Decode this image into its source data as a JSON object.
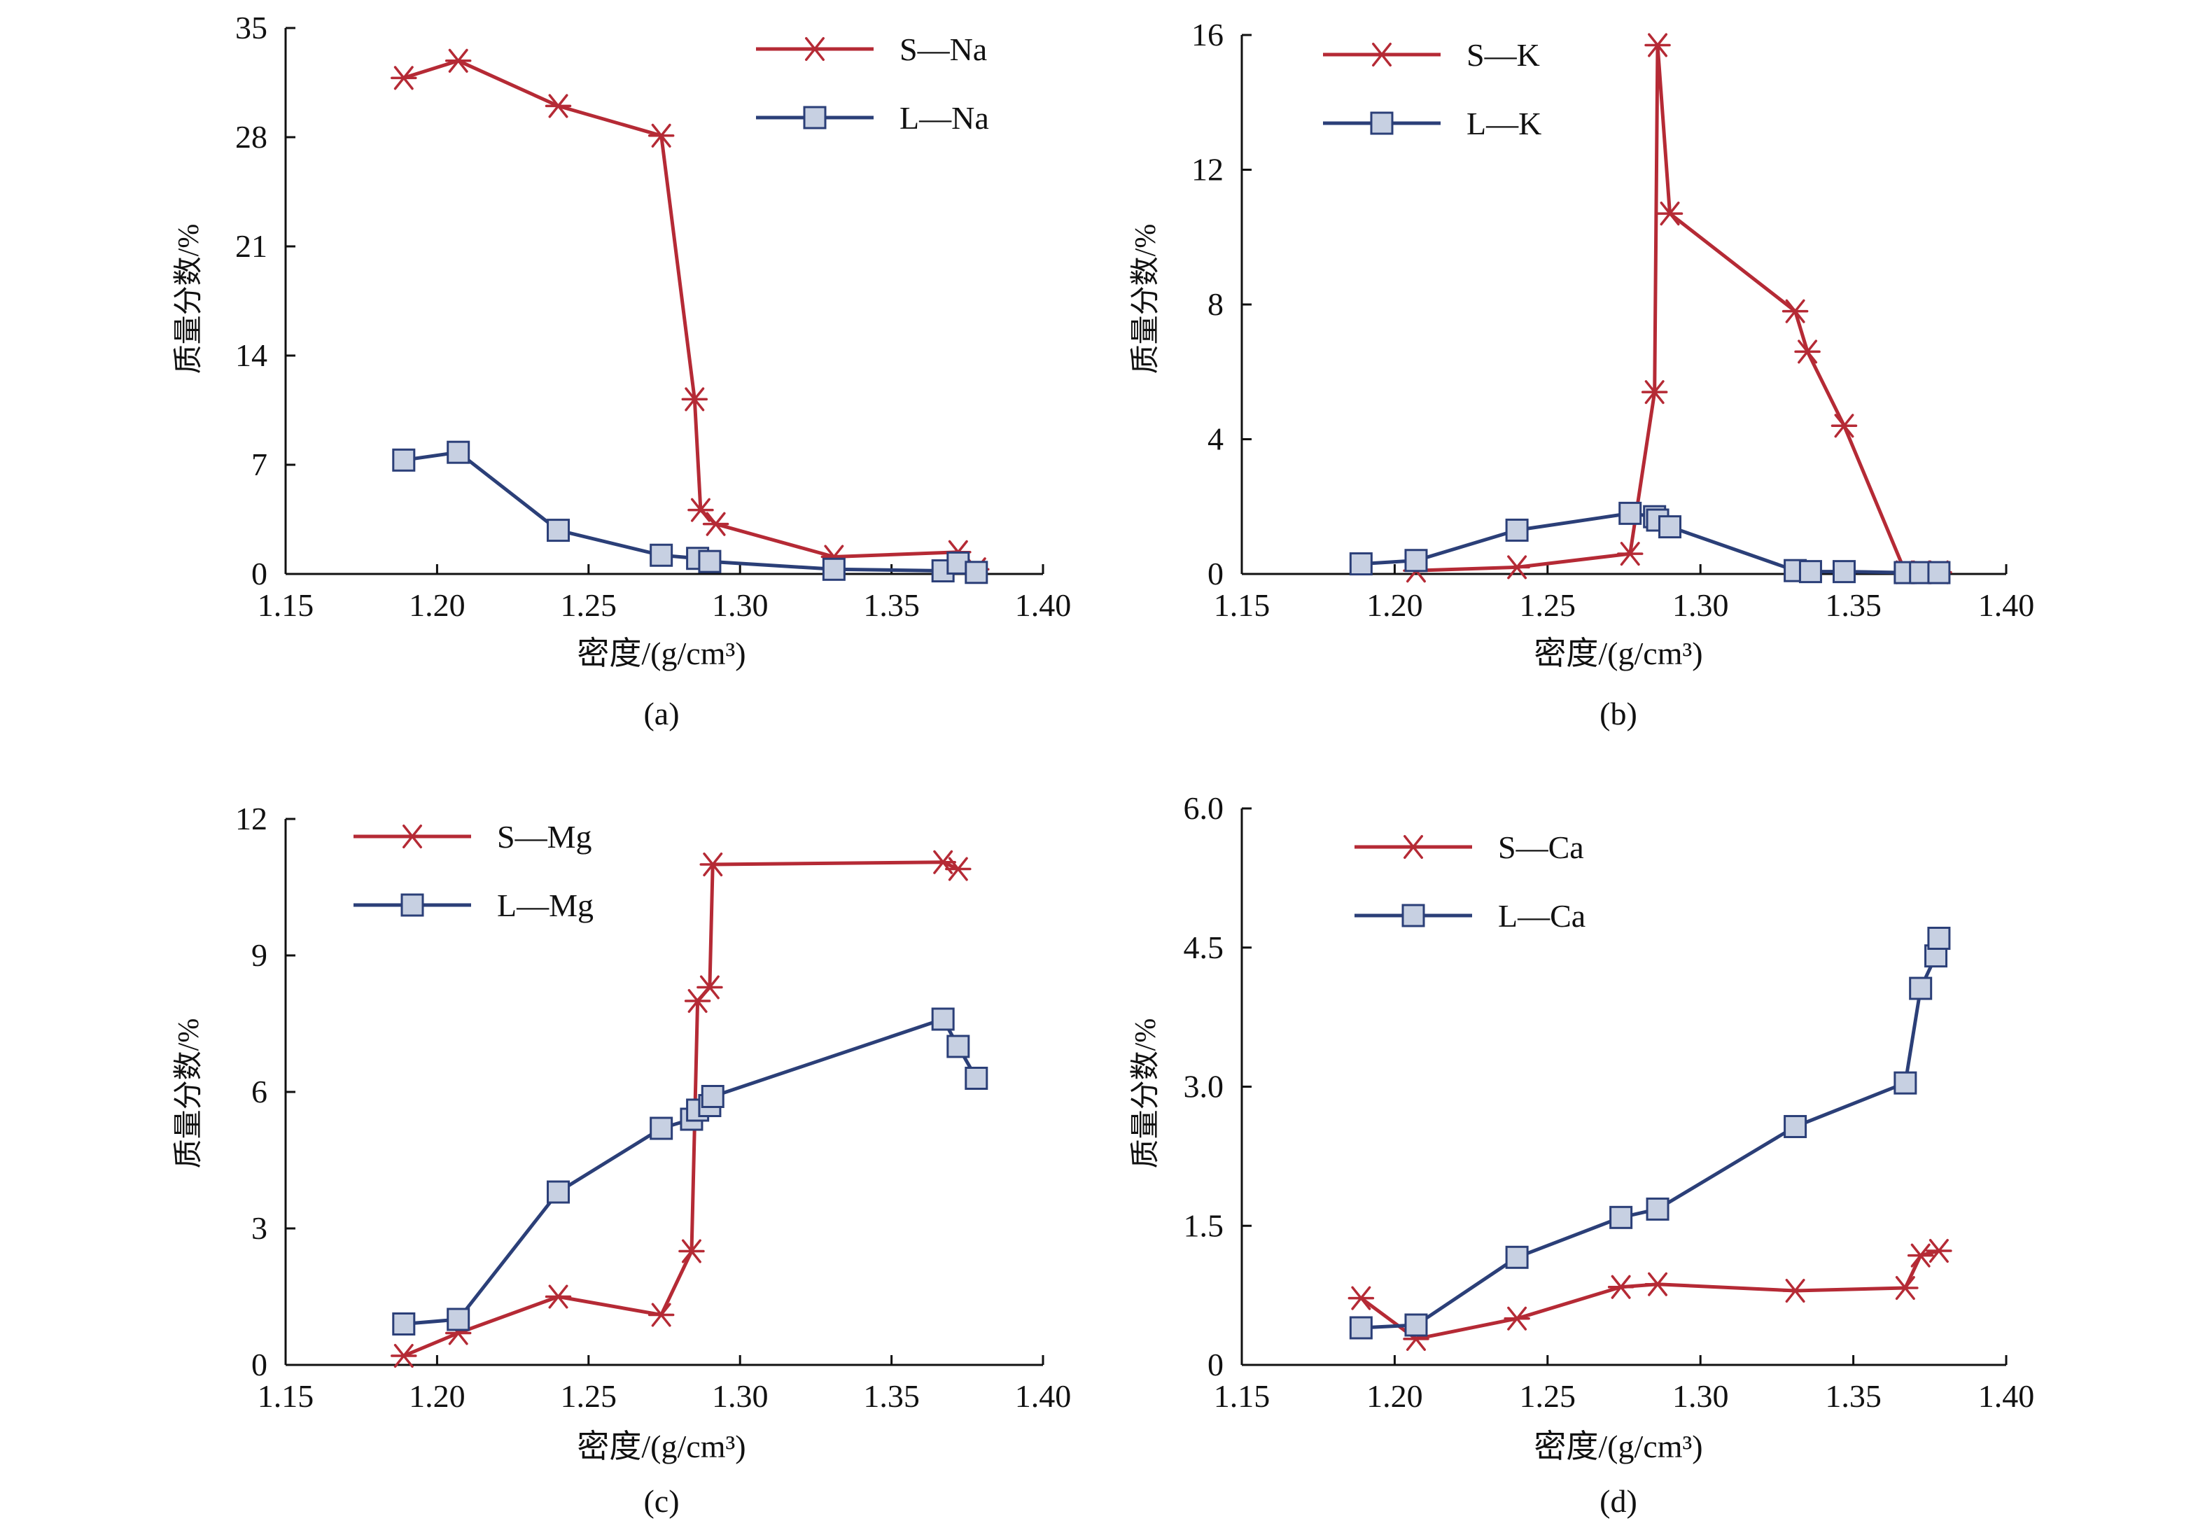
{
  "colors": {
    "S": "#b52a35",
    "L": "#2b3f78",
    "marker_fill": "#c7d0e2",
    "axis": "#111111"
  },
  "chart_data": [
    {
      "panel": "(a)",
      "type": "line",
      "xlabel": "密度/(g/cm³)",
      "ylabel": "质量分数/%",
      "xlim": [
        1.15,
        1.4
      ],
      "ylim": [
        0,
        35
      ],
      "xticks": [
        1.15,
        1.2,
        1.25,
        1.3,
        1.35,
        1.4
      ],
      "xtick_labels": [
        "1.15",
        "1.20",
        "1.25",
        "1.30",
        "1.35",
        "1.40"
      ],
      "yticks": [
        0,
        7,
        14,
        21,
        28,
        35
      ],
      "ytick_labels": [
        "0",
        "7",
        "14",
        "21",
        "28",
        "35"
      ],
      "legend_position": "top-right",
      "grid": false,
      "series": [
        {
          "name": "S—Na",
          "key": "S",
          "marker": "asterisk",
          "x": [
            1.189,
            1.207,
            1.24,
            1.274,
            1.285,
            1.287,
            1.292,
            1.331,
            1.372,
            1.378
          ],
          "y": [
            31.8,
            32.9,
            30.0,
            28.1,
            11.2,
            4.1,
            3.2,
            1.1,
            1.4,
            0.3
          ]
        },
        {
          "name": "L—Na",
          "key": "L",
          "marker": "square",
          "x": [
            1.189,
            1.207,
            1.24,
            1.274,
            1.286,
            1.29,
            1.331,
            1.367,
            1.372,
            1.378
          ],
          "y": [
            7.3,
            7.8,
            2.8,
            1.2,
            1.0,
            0.8,
            0.3,
            0.2,
            0.7,
            0.1
          ]
        }
      ]
    },
    {
      "panel": "(b)",
      "type": "line",
      "xlabel": "密度/(g/cm³)",
      "ylabel": "质量分数/%",
      "xlim": [
        1.15,
        1.4
      ],
      "ylim": [
        0,
        16
      ],
      "xticks": [
        1.15,
        1.2,
        1.25,
        1.3,
        1.35,
        1.4
      ],
      "xtick_labels": [
        "1.15",
        "1.20",
        "1.25",
        "1.30",
        "1.35",
        "1.40"
      ],
      "yticks": [
        0,
        4,
        8,
        12,
        16
      ],
      "ytick_labels": [
        "0",
        "4",
        "8",
        "12",
        "16"
      ],
      "legend_position": "top-left",
      "grid": false,
      "series": [
        {
          "name": "S—K",
          "key": "S",
          "marker": "asterisk",
          "x": [
            1.207,
            1.24,
            1.277,
            1.285,
            1.286,
            1.29,
            1.331,
            1.335,
            1.347,
            1.367,
            1.372,
            1.378
          ],
          "y": [
            0.1,
            0.2,
            0.6,
            5.4,
            15.7,
            10.7,
            7.8,
            6.6,
            4.4,
            0.05,
            0.05,
            0.05
          ]
        },
        {
          "name": "L—K",
          "key": "L",
          "marker": "square",
          "x": [
            1.189,
            1.207,
            1.24,
            1.277,
            1.285,
            1.286,
            1.29,
            1.331,
            1.336,
            1.347,
            1.367,
            1.372,
            1.378
          ],
          "y": [
            0.3,
            0.4,
            1.3,
            1.8,
            1.7,
            1.6,
            1.4,
            0.1,
            0.07,
            0.07,
            0.04,
            0.04,
            0.04
          ]
        }
      ]
    },
    {
      "panel": "(c)",
      "type": "line",
      "xlabel": "密度/(g/cm³)",
      "ylabel": "质量分数/%",
      "xlim": [
        1.15,
        1.4
      ],
      "ylim": [
        0,
        12
      ],
      "xticks": [
        1.15,
        1.2,
        1.25,
        1.3,
        1.35,
        1.4
      ],
      "xtick_labels": [
        "1.15",
        "1.20",
        "1.25",
        "1.30",
        "1.35",
        "1.40"
      ],
      "yticks": [
        0,
        3,
        6,
        9,
        12
      ],
      "ytick_labels": [
        "0",
        "3",
        "6",
        "9",
        "12"
      ],
      "legend_position": "top-left",
      "grid": false,
      "series": [
        {
          "name": "S—Mg",
          "key": "S",
          "marker": "asterisk",
          "x": [
            1.189,
            1.207,
            1.24,
            1.274,
            1.284,
            1.286,
            1.29,
            1.291,
            1.367,
            1.372
          ],
          "y": [
            0.2,
            0.7,
            1.5,
            1.1,
            2.5,
            8.0,
            8.3,
            11.0,
            11.05,
            10.9
          ]
        },
        {
          "name": "L—Mg",
          "key": "L",
          "marker": "square",
          "x": [
            1.189,
            1.207,
            1.24,
            1.274,
            1.284,
            1.286,
            1.29,
            1.291,
            1.367,
            1.372,
            1.378
          ],
          "y": [
            0.9,
            1.0,
            3.8,
            5.2,
            5.4,
            5.6,
            5.7,
            5.9,
            7.6,
            7.0,
            6.3
          ]
        }
      ]
    },
    {
      "panel": "(d)",
      "type": "line",
      "xlabel": "密度/(g/cm³)",
      "ylabel": "质量分数/%",
      "xlim": [
        1.15,
        1.4
      ],
      "ylim": [
        0,
        6.0
      ],
      "xticks": [
        1.15,
        1.2,
        1.25,
        1.3,
        1.35,
        1.4
      ],
      "xtick_labels": [
        "1.15",
        "1.20",
        "1.25",
        "1.30",
        "1.35",
        "1.40"
      ],
      "yticks": [
        0,
        1.5,
        3.0,
        4.5,
        6.0
      ],
      "ytick_labels": [
        "0",
        "1.5",
        "3.0",
        "4.5",
        "6.0"
      ],
      "legend_position": "top-left",
      "grid": false,
      "series": [
        {
          "name": "S—Ca",
          "key": "S",
          "marker": "asterisk",
          "x": [
            1.189,
            1.207,
            1.24,
            1.274,
            1.286,
            1.331,
            1.367,
            1.372,
            1.378
          ],
          "y": [
            0.72,
            0.28,
            0.5,
            0.84,
            0.87,
            0.8,
            0.83,
            1.18,
            1.23
          ]
        },
        {
          "name": "L—Ca",
          "key": "L",
          "marker": "square",
          "x": [
            1.189,
            1.207,
            1.24,
            1.274,
            1.286,
            1.331,
            1.367,
            1.372,
            1.377,
            1.378
          ],
          "y": [
            0.4,
            0.43,
            1.16,
            1.59,
            1.68,
            2.57,
            3.04,
            4.06,
            4.41,
            4.6
          ]
        }
      ]
    }
  ]
}
